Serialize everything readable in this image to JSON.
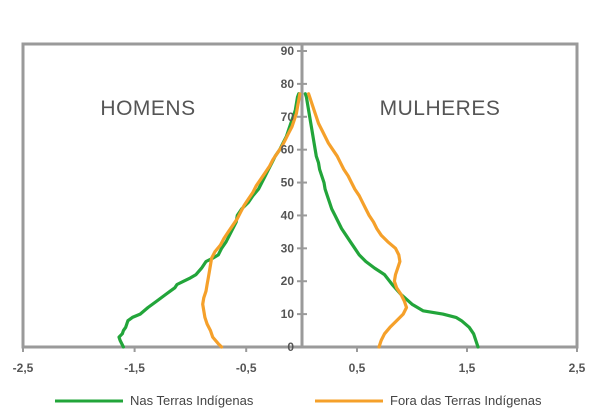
{
  "chart_data": {
    "type": "line",
    "title": "",
    "xlabel": "",
    "ylabel": "",
    "xlim": [
      -2.5,
      2.5
    ],
    "ylim": [
      0,
      90
    ],
    "x_ticks": [
      {
        "value": -2.5,
        "label": "-2,5"
      },
      {
        "value": -1.5,
        "label": "-1,5"
      },
      {
        "value": -0.5,
        "label": "-0,5"
      },
      {
        "value": 0.5,
        "label": "0,5"
      },
      {
        "value": 1.5,
        "label": "1,5"
      },
      {
        "value": 2.5,
        "label": "2,5"
      }
    ],
    "y_ticks": [
      0,
      10,
      20,
      30,
      40,
      50,
      60,
      70,
      80,
      90
    ],
    "panel_labels": {
      "left": "HOMENS",
      "right": "MULHERES"
    },
    "legend_position": "bottom",
    "series": [
      {
        "name": "Nas Terras Indígenas",
        "color": "#22a53a",
        "points": [
          [
            -1.6,
            0
          ],
          [
            -1.63,
            2
          ],
          [
            -1.64,
            3
          ],
          [
            -1.61,
            4
          ],
          [
            -1.6,
            5
          ],
          [
            -1.58,
            6
          ],
          [
            -1.56,
            8
          ],
          [
            -1.52,
            9
          ],
          [
            -1.45,
            10
          ],
          [
            -1.38,
            12
          ],
          [
            -1.3,
            14
          ],
          [
            -1.22,
            16
          ],
          [
            -1.18,
            17
          ],
          [
            -1.14,
            18
          ],
          [
            -1.12,
            19
          ],
          [
            -1.06,
            20
          ],
          [
            -1.0,
            21
          ],
          [
            -0.95,
            22
          ],
          [
            -0.9,
            24
          ],
          [
            -0.86,
            26
          ],
          [
            -0.8,
            27
          ],
          [
            -0.75,
            28
          ],
          [
            -0.72,
            30
          ],
          [
            -0.68,
            32
          ],
          [
            -0.65,
            34
          ],
          [
            -0.62,
            36
          ],
          [
            -0.59,
            38
          ],
          [
            -0.58,
            40
          ],
          [
            -0.54,
            42
          ],
          [
            -0.48,
            44
          ],
          [
            -0.44,
            46
          ],
          [
            -0.39,
            48
          ],
          [
            -0.36,
            50
          ],
          [
            -0.33,
            52
          ],
          [
            -0.3,
            54
          ],
          [
            -0.27,
            56
          ],
          [
            -0.24,
            58
          ],
          [
            -0.2,
            60
          ],
          [
            -0.17,
            62
          ],
          [
            -0.14,
            64
          ],
          [
            -0.12,
            66
          ],
          [
            -0.1,
            68
          ],
          [
            -0.08,
            70
          ],
          [
            -0.06,
            72
          ],
          [
            -0.05,
            74
          ],
          [
            -0.04,
            76
          ],
          [
            -0.03,
            77
          ],
          null,
          [
            1.6,
            0
          ],
          [
            1.58,
            2
          ],
          [
            1.56,
            4
          ],
          [
            1.52,
            6
          ],
          [
            1.45,
            8
          ],
          [
            1.4,
            9
          ],
          [
            1.28,
            10
          ],
          [
            1.1,
            11
          ],
          [
            1.0,
            13
          ],
          [
            0.9,
            16
          ],
          [
            0.82,
            19
          ],
          [
            0.75,
            22
          ],
          [
            0.66,
            24
          ],
          [
            0.58,
            26
          ],
          [
            0.52,
            28
          ],
          [
            0.48,
            30
          ],
          [
            0.44,
            32
          ],
          [
            0.4,
            34
          ],
          [
            0.36,
            36
          ],
          [
            0.33,
            38
          ],
          [
            0.3,
            40
          ],
          [
            0.27,
            42
          ],
          [
            0.25,
            44
          ],
          [
            0.23,
            46
          ],
          [
            0.21,
            48
          ],
          [
            0.2,
            50
          ],
          [
            0.18,
            52
          ],
          [
            0.16,
            54
          ],
          [
            0.15,
            56
          ],
          [
            0.13,
            58
          ],
          [
            0.12,
            60
          ],
          [
            0.11,
            62
          ],
          [
            0.1,
            64
          ],
          [
            0.09,
            66
          ],
          [
            0.08,
            68
          ],
          [
            0.07,
            70
          ],
          [
            0.06,
            72
          ],
          [
            0.05,
            74
          ],
          [
            0.04,
            76
          ],
          [
            0.03,
            77
          ]
        ]
      },
      {
        "name": "Fora das Terras Indígenas",
        "color": "#f5a02a",
        "points": [
          [
            -0.72,
            0
          ],
          [
            -0.75,
            1
          ],
          [
            -0.8,
            3
          ],
          [
            -0.82,
            5
          ],
          [
            -0.85,
            7
          ],
          [
            -0.87,
            9
          ],
          [
            -0.88,
            11
          ],
          [
            -0.89,
            13
          ],
          [
            -0.88,
            15
          ],
          [
            -0.86,
            17
          ],
          [
            -0.85,
            19
          ],
          [
            -0.84,
            21
          ],
          [
            -0.83,
            23
          ],
          [
            -0.82,
            25
          ],
          [
            -0.81,
            27
          ],
          [
            -0.78,
            29
          ],
          [
            -0.73,
            31
          ],
          [
            -0.7,
            33
          ],
          [
            -0.66,
            35
          ],
          [
            -0.62,
            37
          ],
          [
            -0.58,
            39
          ],
          [
            -0.55,
            41
          ],
          [
            -0.52,
            43
          ],
          [
            -0.48,
            45
          ],
          [
            -0.44,
            47
          ],
          [
            -0.41,
            49
          ],
          [
            -0.37,
            51
          ],
          [
            -0.33,
            53
          ],
          [
            -0.29,
            55
          ],
          [
            -0.26,
            57
          ],
          [
            -0.22,
            59
          ],
          [
            -0.18,
            61
          ],
          [
            -0.15,
            63
          ],
          [
            -0.12,
            65
          ],
          [
            -0.09,
            67
          ],
          [
            -0.07,
            69
          ],
          [
            -0.05,
            71
          ],
          [
            -0.04,
            73
          ],
          [
            -0.03,
            75
          ],
          [
            -0.02,
            77
          ],
          null,
          [
            0.7,
            0
          ],
          [
            0.72,
            2
          ],
          [
            0.75,
            4
          ],
          [
            0.8,
            6
          ],
          [
            0.86,
            8
          ],
          [
            0.92,
            10
          ],
          [
            0.95,
            12
          ],
          [
            0.93,
            14
          ],
          [
            0.9,
            16
          ],
          [
            0.86,
            18
          ],
          [
            0.84,
            20
          ],
          [
            0.85,
            22
          ],
          [
            0.87,
            24
          ],
          [
            0.89,
            26
          ],
          [
            0.88,
            28
          ],
          [
            0.85,
            30
          ],
          [
            0.78,
            32
          ],
          [
            0.72,
            34
          ],
          [
            0.68,
            36
          ],
          [
            0.65,
            38
          ],
          [
            0.61,
            40
          ],
          [
            0.58,
            42
          ],
          [
            0.55,
            44
          ],
          [
            0.52,
            46
          ],
          [
            0.48,
            48
          ],
          [
            0.45,
            50
          ],
          [
            0.42,
            52
          ],
          [
            0.38,
            54
          ],
          [
            0.35,
            56
          ],
          [
            0.32,
            58
          ],
          [
            0.28,
            60
          ],
          [
            0.24,
            62
          ],
          [
            0.21,
            64
          ],
          [
            0.18,
            66
          ],
          [
            0.15,
            68
          ],
          [
            0.13,
            70
          ],
          [
            0.11,
            72
          ],
          [
            0.09,
            74
          ],
          [
            0.07,
            76
          ],
          [
            0.06,
            77
          ]
        ]
      }
    ]
  }
}
